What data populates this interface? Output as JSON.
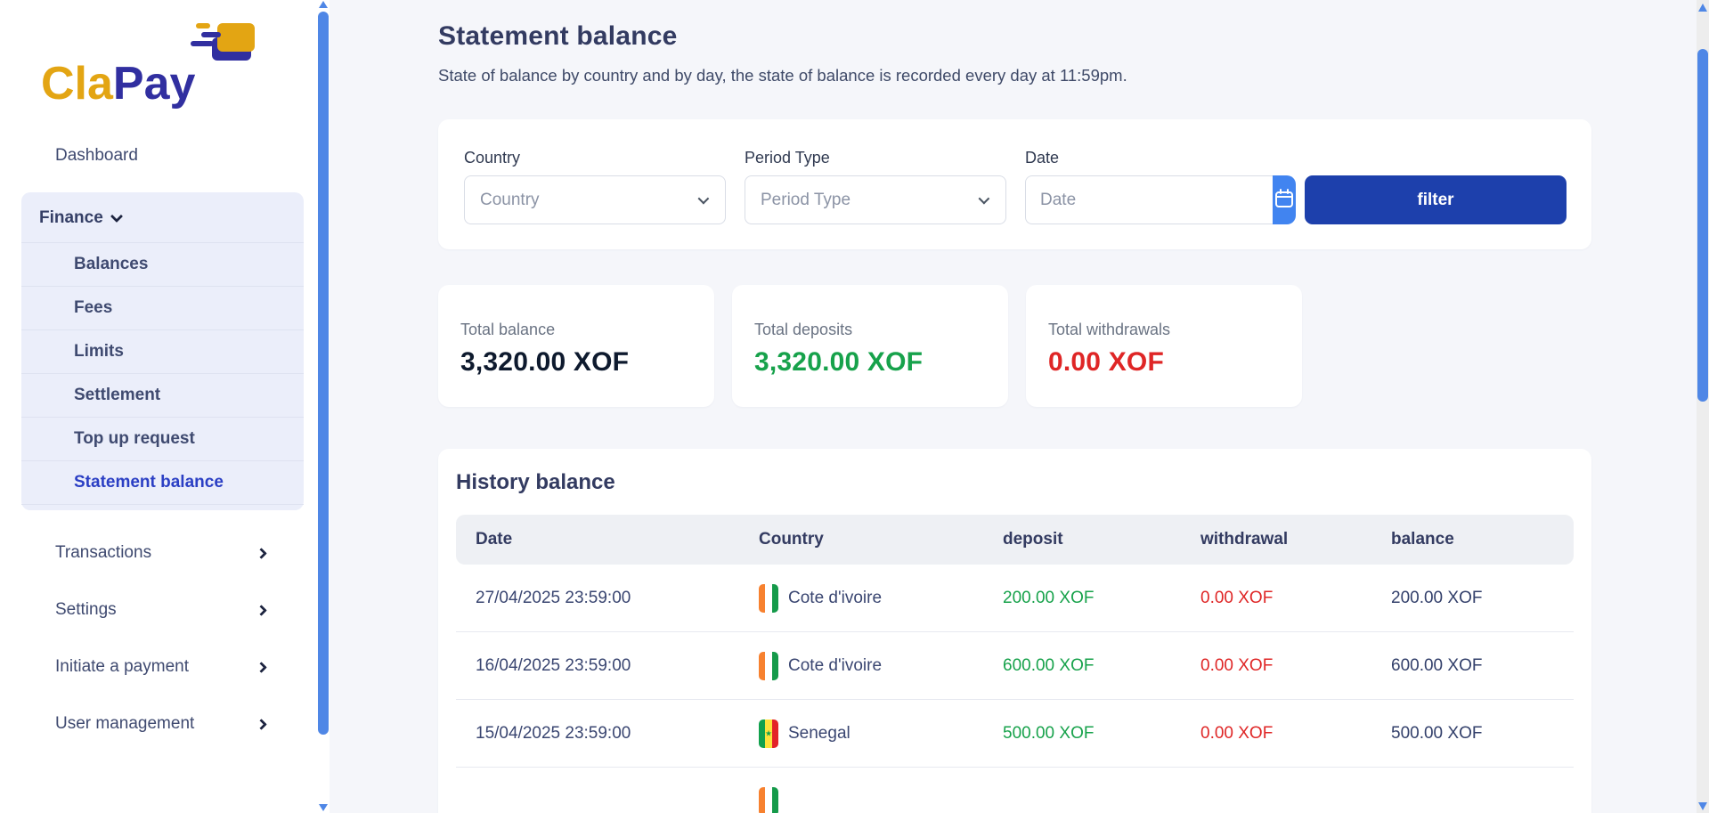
{
  "brand": {
    "name_part1": "Cla",
    "name_part2": "Pay"
  },
  "sidebar": {
    "dashboard_label": "Dashboard",
    "finance": {
      "label": "Finance",
      "items": [
        "Balances",
        "Fees",
        "Limits",
        "Settlement",
        "Top up request",
        "Statement balance"
      ],
      "active_item": "Statement balance"
    },
    "links": [
      "Transactions",
      "Settings",
      "Initiate a payment",
      "User management"
    ]
  },
  "header": {
    "title": "Statement balance",
    "subtitle": "State of balance by country and by day, the state of balance is recorded every day at 11:59pm."
  },
  "filters": {
    "country_label": "Country",
    "country_placeholder": "Country",
    "period_label": "Period Type",
    "period_placeholder": "Period Type",
    "date_label": "Date",
    "date_placeholder": "Date",
    "date_value": "",
    "filter_button": "filter"
  },
  "summary": [
    {
      "label": "Total balance",
      "value": "3,320.00 XOF",
      "color": "#0e1a2e"
    },
    {
      "label": "Total deposits",
      "value": "3,320.00 XOF",
      "color": "#17a24b"
    },
    {
      "label": "Total withdrawals",
      "value": "0.00 XOF",
      "color": "#df2626"
    }
  ],
  "history": {
    "title": "History balance",
    "columns": [
      "Date",
      "Country",
      "deposit",
      "withdrawal",
      "balance"
    ],
    "rows": [
      {
        "date": "27/04/2025 23:59:00",
        "country": "Cote d'ivoire",
        "flag": "ci",
        "deposit": "200.00 XOF",
        "withdrawal": "0.00 XOF",
        "balance": "200.00 XOF"
      },
      {
        "date": "16/04/2025 23:59:00",
        "country": "Cote d'ivoire",
        "flag": "ci",
        "deposit": "600.00 XOF",
        "withdrawal": "0.00 XOF",
        "balance": "600.00 XOF"
      },
      {
        "date": "15/04/2025 23:59:00",
        "country": "Senegal",
        "flag": "sn",
        "deposit": "500.00 XOF",
        "withdrawal": "0.00 XOF",
        "balance": "500.00 XOF"
      },
      {
        "date": "",
        "country": "",
        "flag": "ci",
        "deposit": "",
        "withdrawal": "",
        "balance": ""
      }
    ]
  },
  "flags": {
    "ci": {
      "stripes": [
        "#f7812f",
        "#ffffff",
        "#159a4a"
      ]
    },
    "sn": {
      "stripes": [
        "#11a14d",
        "#fde23c",
        "#e32228"
      ],
      "star": "#11a14d"
    }
  },
  "colors": {
    "accent_active": "#2b3fc4",
    "filter_button": "#1d40ac",
    "calendar_button": "#4184f0",
    "positive": "#17a24b",
    "negative": "#df2626",
    "scrollbar": "#4f87e6",
    "logo_gold": "#e3a513",
    "logo_indigo": "#312fa0"
  }
}
